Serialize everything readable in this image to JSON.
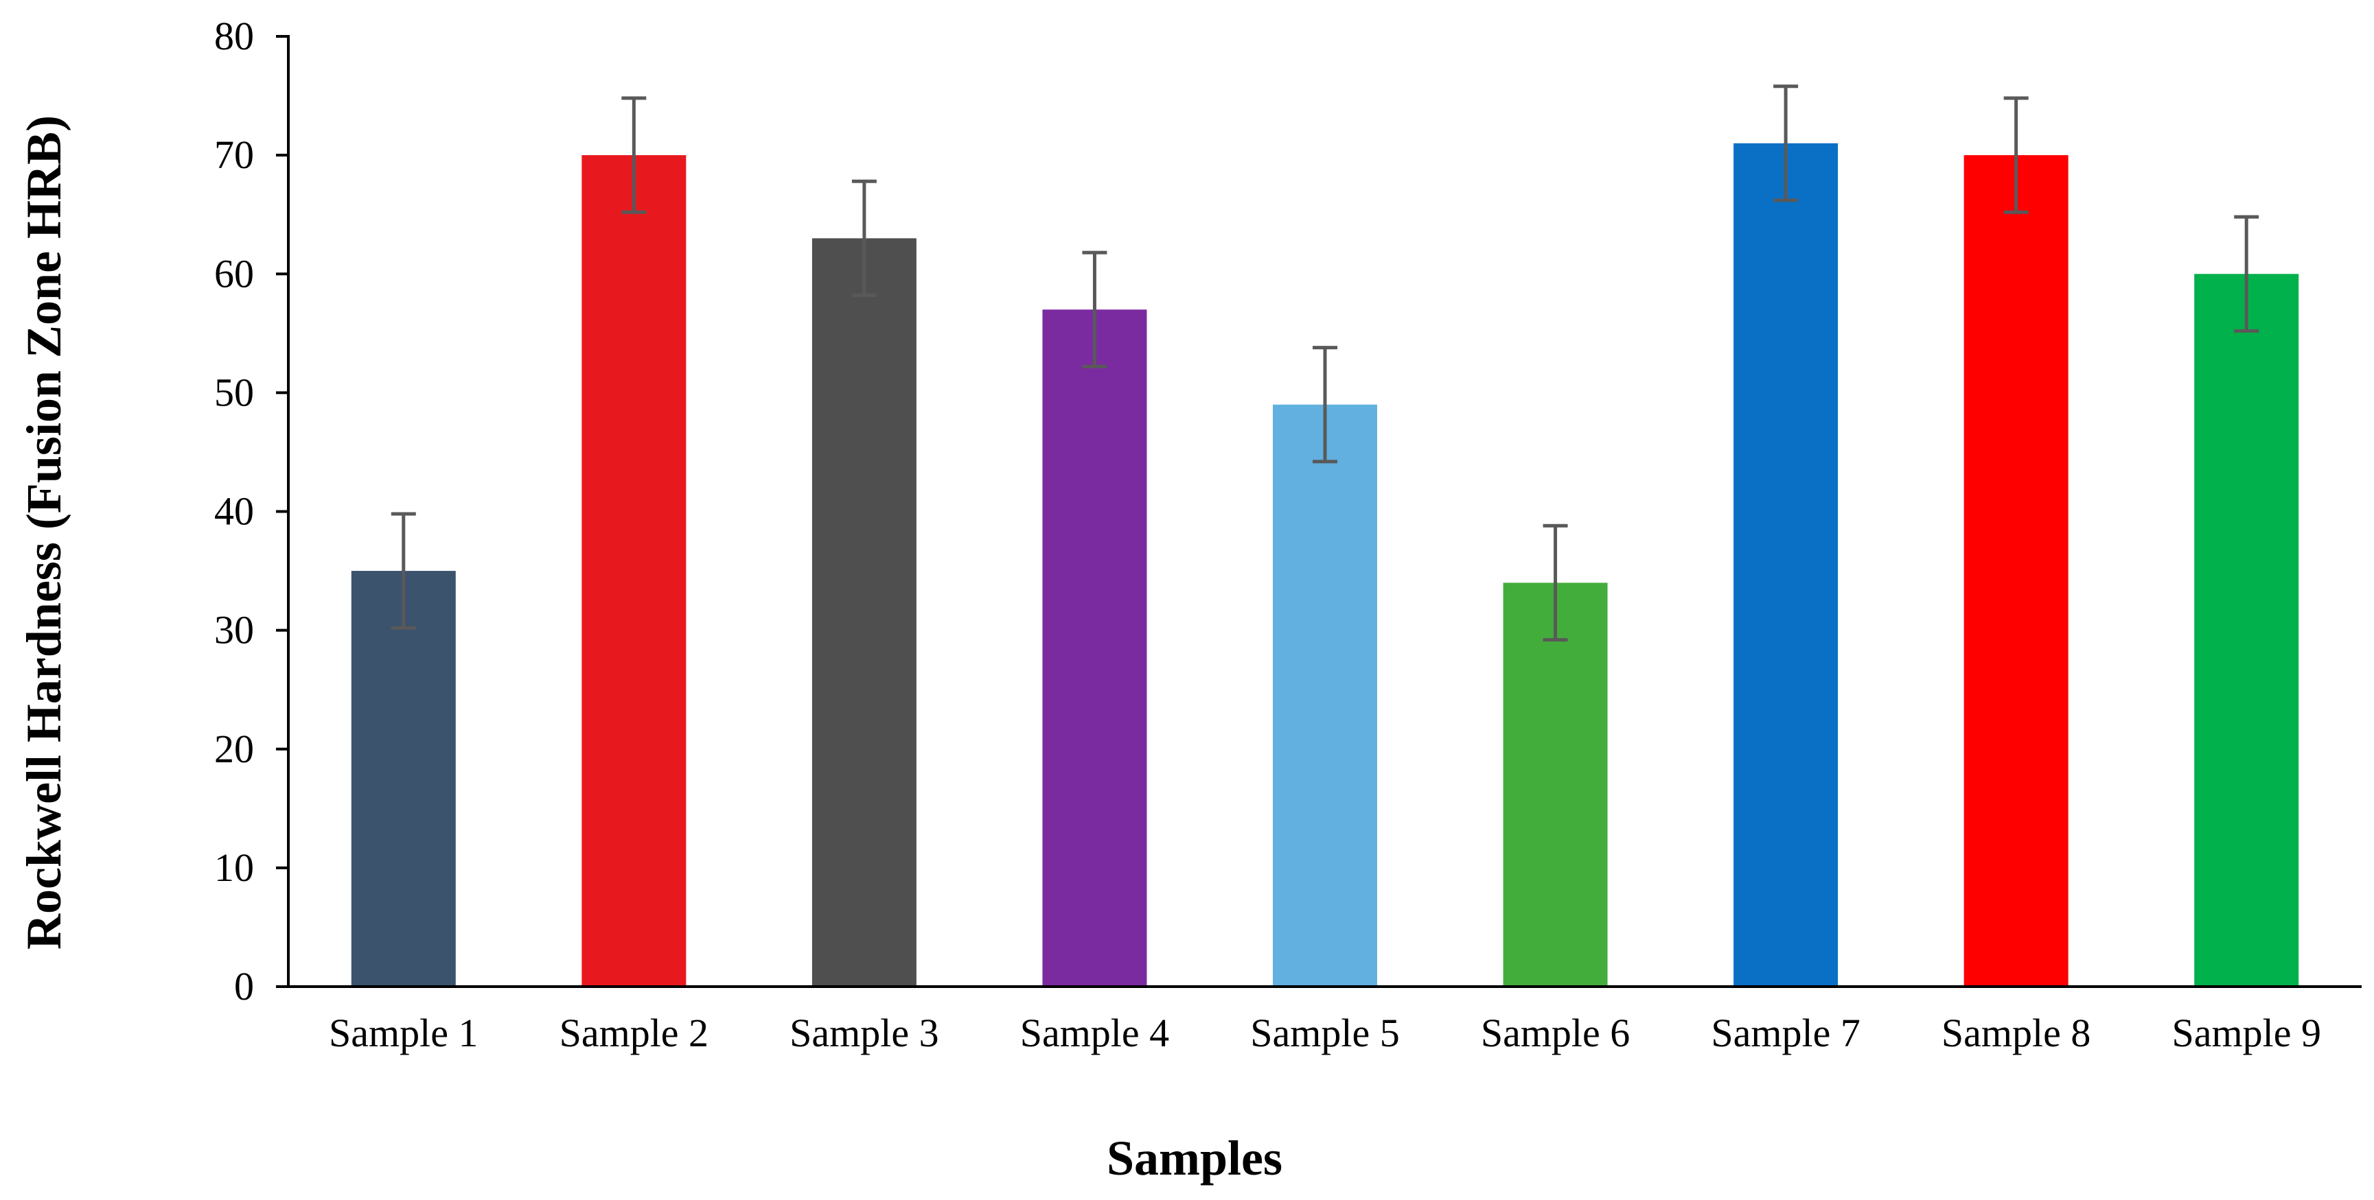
{
  "chart_data": {
    "type": "bar",
    "title": "",
    "xlabel": "Samples",
    "ylabel": "Rockwell Hardness (Fusion Zone HRB)",
    "categories": [
      "Sample 1",
      "Sample 2",
      "Sample 3",
      "Sample 4",
      "Sample 5",
      "Sample 6",
      "Sample 7",
      "Sample 8",
      "Sample 9"
    ],
    "values": [
      35,
      70,
      63,
      57,
      49,
      34,
      71,
      70,
      60
    ],
    "error": [
      4.8,
      4.8,
      4.8,
      4.8,
      4.8,
      4.8,
      4.8,
      4.8,
      4.8
    ],
    "colors": [
      "#3c536e",
      "#e8191e",
      "#4f4f4f",
      "#7b2ba0",
      "#62b0e0",
      "#43ad3c",
      "#0a70c6",
      "#fe0000",
      "#00b14c"
    ],
    "error_bar_color": "#595959",
    "ylim": [
      0,
      80
    ],
    "yticks": [
      0,
      10,
      20,
      30,
      40,
      50,
      60,
      70,
      80
    ],
    "grid": false,
    "legend": "none"
  }
}
